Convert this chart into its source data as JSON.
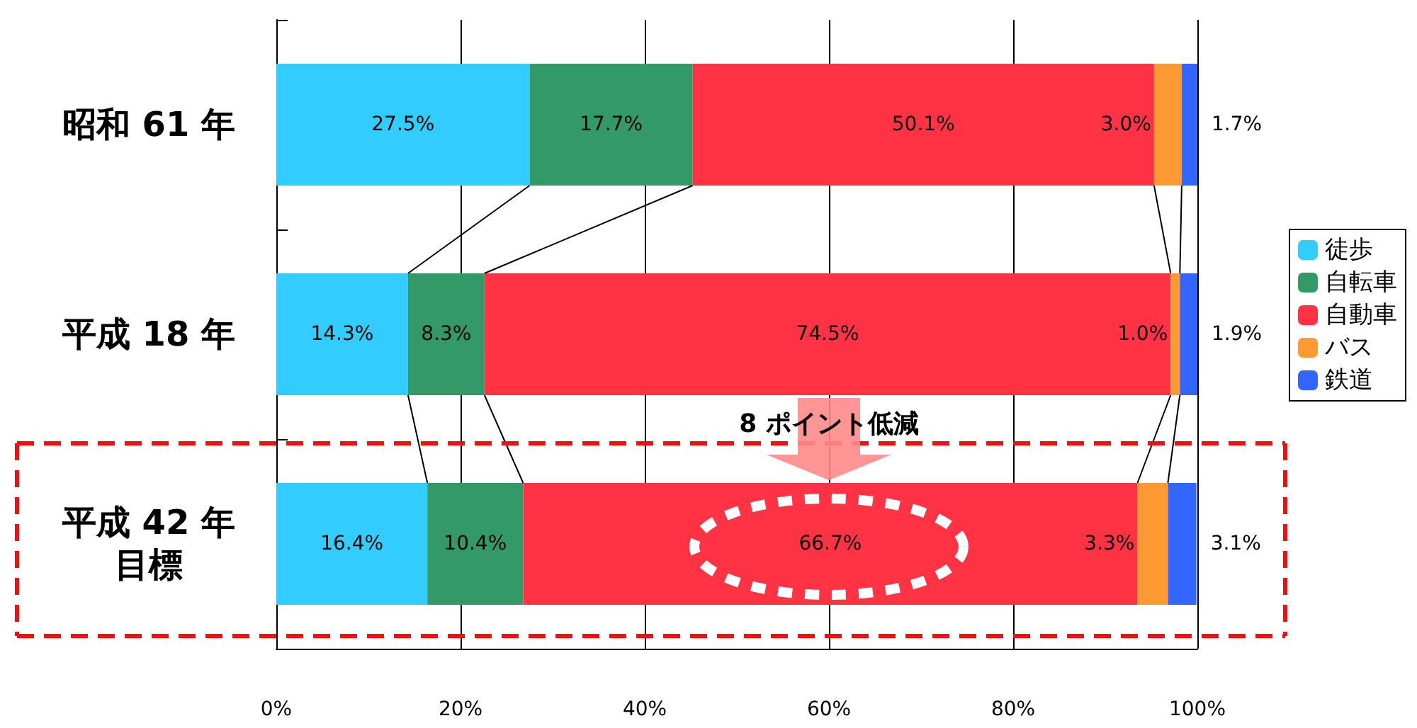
{
  "chart_data": {
    "type": "bar",
    "orientation": "horizontal",
    "stacked": true,
    "categories": [
      "昭和 61 年",
      "平成 18 年",
      "平成 42 年目標"
    ],
    "series": [
      {
        "name": "徒歩",
        "color": "#33ccff",
        "values": [
          27.5,
          14.3,
          16.4
        ],
        "value_labels": [
          "27.5%",
          "14.3%",
          "16.4%"
        ]
      },
      {
        "name": "自転車",
        "color": "#339966",
        "values": [
          17.7,
          8.3,
          10.4
        ],
        "value_labels": [
          "17.7%",
          "8.3%",
          "10.4%"
        ]
      },
      {
        "name": "自動車",
        "color": "#ff3344",
        "values": [
          50.1,
          74.5,
          66.7
        ],
        "value_labels": [
          "50.1%",
          "74.5%",
          "66.7%"
        ]
      },
      {
        "name": "バス",
        "color": "#ff9933",
        "values": [
          3.0,
          1.0,
          3.3
        ],
        "value_labels": [
          "3.0%",
          "1.0%",
          "3.3%"
        ]
      },
      {
        "name": "鉄道",
        "color": "#3366ff",
        "values": [
          1.7,
          1.9,
          3.1
        ],
        "value_labels": [
          "1.7%",
          "1.9%",
          "3.1%"
        ]
      }
    ],
    "xlim": [
      0,
      100
    ],
    "xticks": [
      {
        "value": 0,
        "label": "0%"
      },
      {
        "value": 20,
        "label": "20%"
      },
      {
        "value": 40,
        "label": "40%"
      },
      {
        "value": 60,
        "label": "60%"
      },
      {
        "value": 80,
        "label": "80%"
      },
      {
        "value": 100,
        "label": "100%"
      }
    ],
    "grid": "x",
    "legend": "right",
    "annotations": [
      "8 ポイント低減"
    ]
  }
}
